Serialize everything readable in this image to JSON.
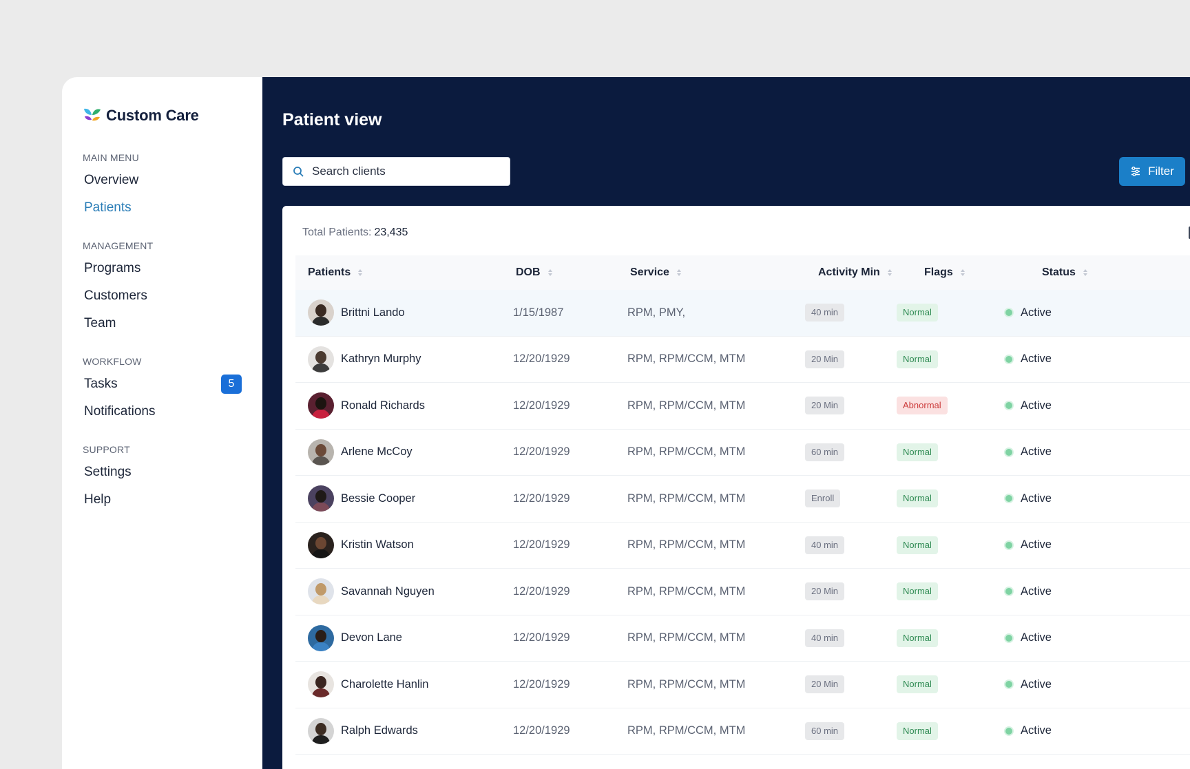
{
  "brand": {
    "name": "Custom Care"
  },
  "sidebar": {
    "sections": [
      {
        "title": "MAIN MENU",
        "items": [
          {
            "label": "Overview"
          },
          {
            "label": "Patients",
            "active": true
          }
        ]
      },
      {
        "title": "MANAGEMENT",
        "items": [
          {
            "label": "Programs"
          },
          {
            "label": "Customers"
          },
          {
            "label": "Team"
          }
        ]
      },
      {
        "title": "WORKFLOW",
        "items": [
          {
            "label": "Tasks",
            "badge": "5"
          },
          {
            "label": "Notifications"
          }
        ]
      },
      {
        "title": "SUPPORT",
        "items": [
          {
            "label": "Settings"
          },
          {
            "label": "Help"
          }
        ]
      }
    ]
  },
  "header": {
    "title": "Patient view",
    "search_placeholder": "Search clients",
    "filter_label": "Filter"
  },
  "table": {
    "total_label": "Total Patients:",
    "total_value": "23,435",
    "columns": [
      "Patients",
      "DOB",
      "Service",
      "Activity Min",
      "Flags",
      "Status"
    ],
    "rows": [
      {
        "name": "Brittni Lando",
        "dob": "1/15/1987",
        "service": "RPM, PMY,",
        "activity": "40 min",
        "flag": "Normal",
        "status": "Active"
      },
      {
        "name": "Kathryn Murphy",
        "dob": "12/20/1929",
        "service": "RPM, RPM/CCM, MTM",
        "activity": "20 Min",
        "flag": "Normal",
        "status": "Active"
      },
      {
        "name": "Ronald Richards",
        "dob": "12/20/1929",
        "service": "RPM, RPM/CCM, MTM",
        "activity": "20 Min",
        "flag": "Abnormal",
        "status": "Active"
      },
      {
        "name": "Arlene McCoy",
        "dob": "12/20/1929",
        "service": "RPM, RPM/CCM, MTM",
        "activity": "60 min",
        "flag": "Normal",
        "status": "Active"
      },
      {
        "name": "Bessie Cooper",
        "dob": "12/20/1929",
        "service": "RPM, RPM/CCM, MTM",
        "activity": "Enroll",
        "flag": "Normal",
        "status": "Active"
      },
      {
        "name": "Kristin Watson",
        "dob": "12/20/1929",
        "service": "RPM, RPM/CCM, MTM",
        "activity": "40 min",
        "flag": "Normal",
        "status": "Active"
      },
      {
        "name": "Savannah Nguyen",
        "dob": "12/20/1929",
        "service": "RPM, RPM/CCM, MTM",
        "activity": "20 Min",
        "flag": "Normal",
        "status": "Active"
      },
      {
        "name": "Devon Lane",
        "dob": "12/20/1929",
        "service": "RPM, RPM/CCM, MTM",
        "activity": "40 min",
        "flag": "Normal",
        "status": "Active"
      },
      {
        "name": "Charolette Hanlin",
        "dob": "12/20/1929",
        "service": "RPM, RPM/CCM, MTM",
        "activity": "20 Min",
        "flag": "Normal",
        "status": "Active"
      },
      {
        "name": "Ralph Edwards",
        "dob": "12/20/1929",
        "service": "RPM, RPM/CCM, MTM",
        "activity": "60 min",
        "flag": "Normal",
        "status": "Active"
      }
    ]
  },
  "colors": {
    "sidebar_active": "#2a7db7",
    "main_bg": "#0b1b3e",
    "filter_button": "#1b7fc8",
    "badge": "#1a6fd8",
    "flag_normal": "#2e8a52",
    "flag_abnormal": "#cc3b3b",
    "status_active_dot": "#7fd3a3"
  },
  "icons": {
    "search": "search-icon",
    "filter": "sliders-icon",
    "sort": "sort-icon",
    "export": "export-icon"
  }
}
